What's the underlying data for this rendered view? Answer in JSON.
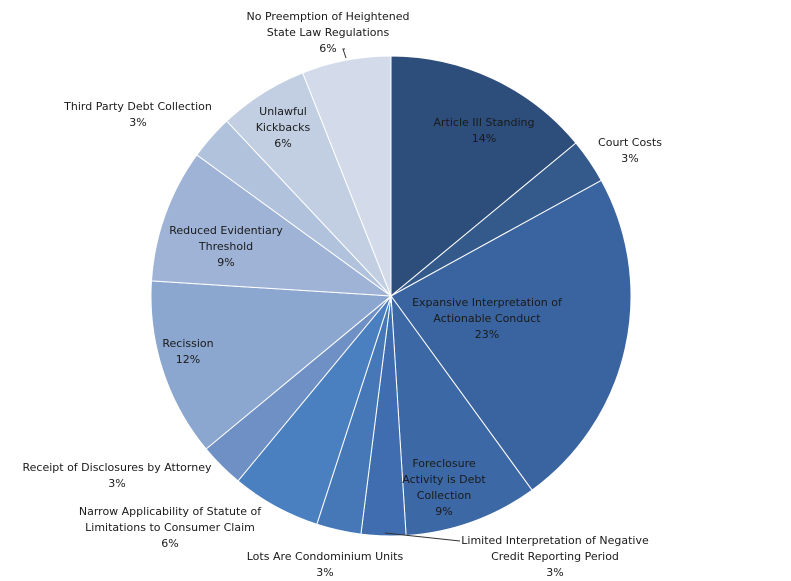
{
  "chart_data": {
    "type": "pie",
    "title": "",
    "categories": [
      "Article III Standing",
      "Court Costs",
      "Expansive Interpretation of Actionable Conduct",
      "Foreclosure Activity is Debt Collection",
      "Limited Interpretation of Negative Credit Reporting Period",
      "Lots Are Condominium Units",
      "Narrow Applicability of Statute of Limitations to Consumer Claim",
      "Receipt of Disclosures by Attorney",
      "Recission",
      "Reduced Evidentiary Threshold",
      "Third Party Debt Collection",
      "Unlawful Kickbacks",
      "No Preemption of Heightened State Law Regulations"
    ],
    "values": [
      14,
      3,
      23,
      9,
      3,
      3,
      6,
      3,
      12,
      9,
      3,
      6,
      6
    ],
    "labels": [
      [
        "Article III Standing",
        "14%"
      ],
      [
        "Court Costs",
        "3%"
      ],
      [
        "Expansive Interpretation of",
        "Actionable Conduct",
        "23%"
      ],
      [
        "Foreclosure",
        "Activity is Debt",
        "Collection",
        "9%"
      ],
      [
        "Limited Interpretation of Negative",
        "Credit Reporting Period",
        "3%"
      ],
      [
        "Lots Are Condominium Units",
        "3%"
      ],
      [
        "Narrow Applicability of Statute of",
        "Limitations to Consumer Claim",
        "6%"
      ],
      [
        "Receipt of Disclosures by Attorney",
        "3%"
      ],
      [
        "Recission",
        "12%"
      ],
      [
        "Reduced Evidentiary",
        "Threshold",
        "9%"
      ],
      [
        "Third Party Debt Collection",
        "3%"
      ],
      [
        "Unlawful",
        "Kickbacks",
        "6%"
      ],
      [
        "No Preemption of Heightened",
        "State Law Regulations",
        "6%"
      ]
    ],
    "colors": [
      "#2d4e7b",
      "#345a8c",
      "#3a64a0",
      "#3c68a6",
      "#3f6daf",
      "#4678b8",
      "#4b80c0",
      "#6f90c4",
      "#8ba6cf",
      "#9fb3d6",
      "#b1c2dd",
      "#c2cfe3",
      "#d3dbea"
    ],
    "legend": "none"
  }
}
